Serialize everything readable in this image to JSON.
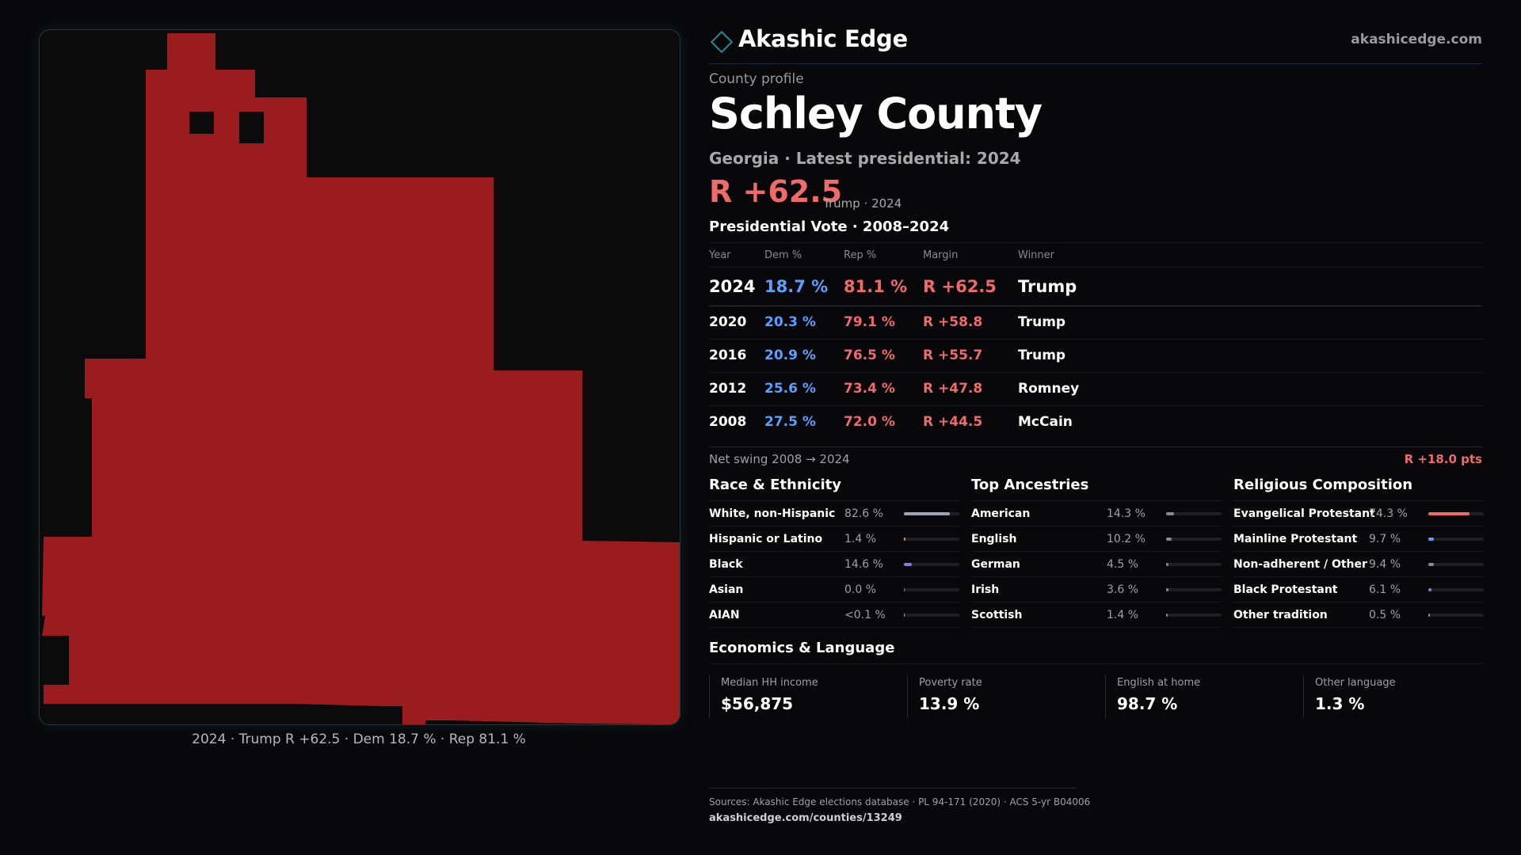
{
  "map": {
    "fill_color": "#9b1c1f",
    "caption": "2024 · Trump R +62.5 · Dem 18.7 % · Rep 81.1 %"
  },
  "header": {
    "brand": "Akashic Edge",
    "site": "akashicedge.com",
    "logo_icon": "diamond-icon",
    "accent_color": "#1e8d96"
  },
  "profile": {
    "label": "County profile",
    "county": "Schley County",
    "subtitle": "Georgia · Latest presidential: 2024",
    "margin": "R +62.5",
    "margin_note": "Trump · 2024"
  },
  "colors": {
    "dem": "#5aa0ff",
    "rep": "#f06a6a"
  },
  "presidential": {
    "title": "Presidential Vote · 2008–2024",
    "columns": [
      "Year",
      "Dem %",
      "Rep %",
      "Margin",
      "Winner"
    ],
    "rows": [
      {
        "year": "2024",
        "dem": "18.7 %",
        "rep": "81.1 %",
        "margin": "R +62.5",
        "winner": "Trump"
      },
      {
        "year": "2020",
        "dem": "20.3 %",
        "rep": "79.1 %",
        "margin": "R +58.8",
        "winner": "Trump"
      },
      {
        "year": "2016",
        "dem": "20.9 %",
        "rep": "76.5 %",
        "margin": "R +55.7",
        "winner": "Trump"
      },
      {
        "year": "2012",
        "dem": "25.6 %",
        "rep": "73.4 %",
        "margin": "R +47.8",
        "winner": "Romney"
      },
      {
        "year": "2008",
        "dem": "27.5 %",
        "rep": "72.0 %",
        "margin": "R +44.5",
        "winner": "McCain"
      }
    ],
    "swing_label": "Net swing 2008 → 2024",
    "swing_value": "R +18.0 pts"
  },
  "race": {
    "title": "Race & Ethnicity",
    "rows": [
      {
        "label": "White, non-Hispanic",
        "value": "82.6 %",
        "fraction": 0.826,
        "color": "#9aa6b8"
      },
      {
        "label": "Hispanic or Latino",
        "value": "1.4 %",
        "fraction": 0.014,
        "color": "#c8a040"
      },
      {
        "label": "Black",
        "value": "14.6 %",
        "fraction": 0.146,
        "color": "#8878e8"
      },
      {
        "label": "Asian",
        "value": "0.0 %",
        "fraction": 0.0,
        "color": "#40b0a0"
      },
      {
        "label": "AIAN",
        "value": "<0.1 %",
        "fraction": 0.0,
        "color": "#a0a0a0"
      }
    ]
  },
  "ancestry": {
    "title": "Top Ancestries",
    "rows": [
      {
        "label": "American",
        "value": "14.3 %",
        "fraction": 0.143,
        "color": "#8a8a90"
      },
      {
        "label": "English",
        "value": "10.2 %",
        "fraction": 0.102,
        "color": "#8a8a90"
      },
      {
        "label": "German",
        "value": "4.5 %",
        "fraction": 0.045,
        "color": "#8a8a90"
      },
      {
        "label": "Irish",
        "value": "3.6 %",
        "fraction": 0.036,
        "color": "#8a8a90"
      },
      {
        "label": "Scottish",
        "value": "1.4 %",
        "fraction": 0.014,
        "color": "#8a8a90"
      }
    ]
  },
  "religion": {
    "title": "Religious Composition",
    "rows": [
      {
        "label": "Evangelical Protestant",
        "value": "74.3 %",
        "fraction": 0.743,
        "color": "#f06a6a"
      },
      {
        "label": "Mainline Protestant",
        "value": "9.7 %",
        "fraction": 0.097,
        "color": "#5aa0ff"
      },
      {
        "label": "Non-adherent / Other",
        "value": "9.4 %",
        "fraction": 0.094,
        "color": "#8a8a90"
      },
      {
        "label": "Black Protestant",
        "value": "6.1 %",
        "fraction": 0.061,
        "color": "#8878e8"
      },
      {
        "label": "Other tradition",
        "value": "0.5 %",
        "fraction": 0.005,
        "color": "#8a8a90"
      }
    ]
  },
  "economics": {
    "title": "Economics & Language",
    "tiles": [
      {
        "label": "Median HH income",
        "value": "$56,875"
      },
      {
        "label": "Poverty rate",
        "value": "13.9 %"
      },
      {
        "label": "English at home",
        "value": "98.7 %"
      },
      {
        "label": "Other language",
        "value": "1.3 %"
      }
    ]
  },
  "sources": {
    "line": "Sources: Akashic Edge elections database · PL 94-171 (2020) · ACS 5-yr B04006",
    "url": "akashicedge.com/counties/13249"
  }
}
